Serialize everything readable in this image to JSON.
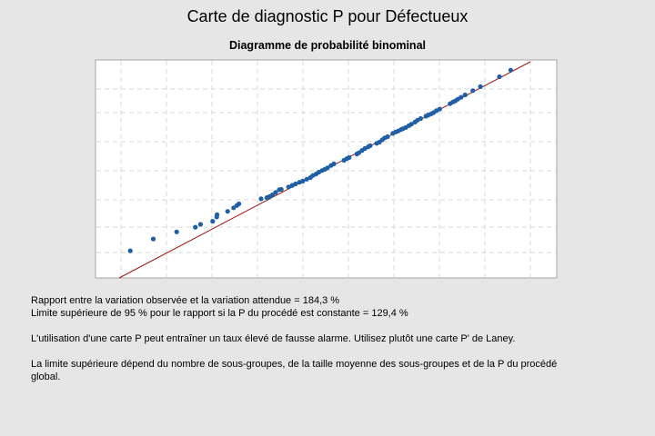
{
  "header": {
    "title": "Carte de diagnostic P pour Défectueux"
  },
  "chart_data": {
    "type": "scatter",
    "title": "Diagramme de probabilité binominal",
    "xlabel": "",
    "ylabel": "",
    "grid": true,
    "reference_line": {
      "color": "#a31515"
    },
    "point_color": "#1f5fa6",
    "points": [
      [
        0.086,
        0.115
      ],
      [
        0.143,
        0.165
      ],
      [
        0.201,
        0.195
      ],
      [
        0.247,
        0.215
      ],
      [
        0.26,
        0.227
      ],
      [
        0.29,
        0.24
      ],
      [
        0.3,
        0.258
      ],
      [
        0.301,
        0.268
      ],
      [
        0.327,
        0.282
      ],
      [
        0.342,
        0.297
      ],
      [
        0.35,
        0.307
      ],
      [
        0.355,
        0.314
      ],
      [
        0.41,
        0.335
      ],
      [
        0.424,
        0.34
      ],
      [
        0.431,
        0.345
      ],
      [
        0.438,
        0.352
      ],
      [
        0.446,
        0.362
      ],
      [
        0.455,
        0.374
      ],
      [
        0.46,
        0.375
      ],
      [
        0.478,
        0.385
      ],
      [
        0.487,
        0.392
      ],
      [
        0.495,
        0.398
      ],
      [
        0.505,
        0.405
      ],
      [
        0.513,
        0.41
      ],
      [
        0.523,
        0.418
      ],
      [
        0.532,
        0.425
      ],
      [
        0.538,
        0.434
      ],
      [
        0.546,
        0.44
      ],
      [
        0.553,
        0.448
      ],
      [
        0.561,
        0.455
      ],
      [
        0.568,
        0.46
      ],
      [
        0.574,
        0.466
      ],
      [
        0.583,
        0.476
      ],
      [
        0.59,
        0.483
      ],
      [
        0.615,
        0.498
      ],
      [
        0.622,
        0.505
      ],
      [
        0.628,
        0.51
      ],
      [
        0.647,
        0.525
      ],
      [
        0.652,
        0.53
      ],
      [
        0.66,
        0.54
      ],
      [
        0.667,
        0.548
      ],
      [
        0.675,
        0.555
      ],
      [
        0.68,
        0.56
      ],
      [
        0.696,
        0.57
      ],
      [
        0.703,
        0.575
      ],
      [
        0.71,
        0.585
      ],
      [
        0.716,
        0.593
      ],
      [
        0.723,
        0.598
      ],
      [
        0.736,
        0.612
      ],
      [
        0.743,
        0.618
      ],
      [
        0.749,
        0.622
      ],
      [
        0.756,
        0.628
      ],
      [
        0.761,
        0.632
      ],
      [
        0.768,
        0.637
      ],
      [
        0.776,
        0.645
      ],
      [
        0.782,
        0.651
      ],
      [
        0.791,
        0.66
      ],
      [
        0.797,
        0.668
      ],
      [
        0.805,
        0.675
      ],
      [
        0.818,
        0.685
      ],
      [
        0.824,
        0.69
      ],
      [
        0.831,
        0.695
      ],
      [
        0.837,
        0.7
      ],
      [
        0.844,
        0.708
      ],
      [
        0.852,
        0.715
      ],
      [
        0.878,
        0.738
      ],
      [
        0.885,
        0.745
      ],
      [
        0.891,
        0.75
      ],
      [
        0.897,
        0.757
      ],
      [
        0.905,
        0.765
      ],
      [
        0.915,
        0.775
      ],
      [
        0.934,
        0.793
      ],
      [
        0.953,
        0.81
      ],
      [
        1.0,
        0.852
      ],
      [
        1.028,
        0.88
      ]
    ]
  },
  "report": {
    "line1": "Rapport entre la variation observée et la variation attendue = 184,3 %",
    "line2": "Limite supérieure de 95 % pour le rapport si la P du procédé est constante  = 129,4 %",
    "line3": "L'utilisation d'une carte P peut entraîner un taux élevé de fausse alarme. Utilisez plutôt une carte P' de Laney.",
    "line4": "La limite supérieure dépend du nombre de sous-groupes, de la taille moyenne des sous-groupes et de la P du procédé",
    "line5": "global."
  }
}
